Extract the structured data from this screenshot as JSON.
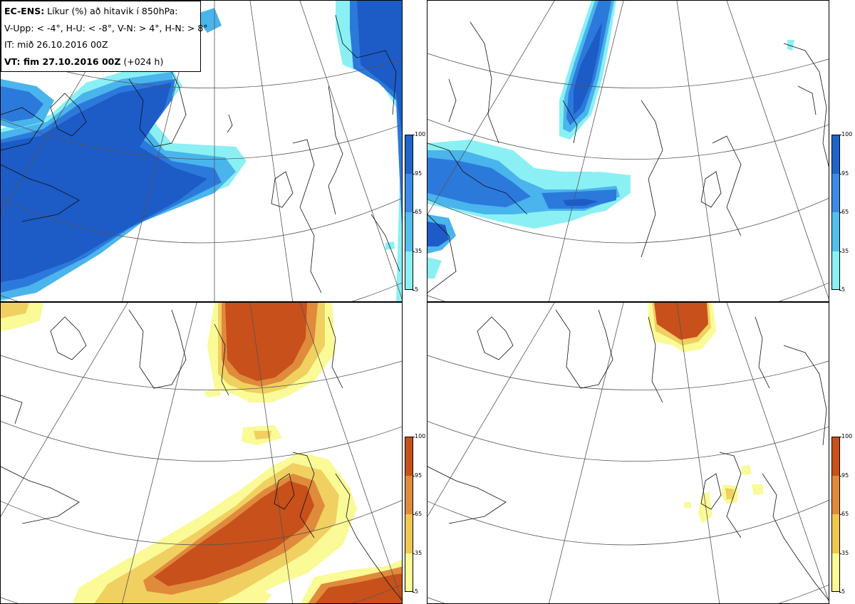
{
  "info": {
    "model": "EC-ENS:",
    "title_rest": " Líkur (%) að hitavik í 850hPa:",
    "thresholds": "V-Upp: < -4°, H-U: < -8°, V-N: > 4°, H-N: > 8°",
    "init": "IT: mið 26.10.2016 00Z",
    "valid_bold": "VT: fim 27.10.2016 00Z",
    "valid_lead": " (+024 h)"
  },
  "panels": [
    {
      "id": "V-Upp",
      "scheme": "cold",
      "threshold": "< -4°"
    },
    {
      "id": "H-U",
      "scheme": "cold",
      "threshold": "< -8°"
    },
    {
      "id": "V-N",
      "scheme": "warm",
      "threshold": "> 4°"
    },
    {
      "id": "H-N",
      "scheme": "warm",
      "threshold": "> 8°"
    }
  ],
  "colorbar": {
    "ticks": [
      "100",
      "95",
      "65",
      "35",
      "5"
    ],
    "cold": [
      "#1f64c8",
      "#3c8be6",
      "#52c0ea",
      "#8af0f4"
    ],
    "warm": [
      "#c8501a",
      "#e08a3c",
      "#f0c850",
      "#fafa96"
    ]
  },
  "colors": {
    "cold_levels": [
      "#8af0f4",
      "#4ab4ec",
      "#2c79dc",
      "#1d5bc6"
    ],
    "warm_levels": [
      "#fafa96",
      "#f0d060",
      "#e08a3c",
      "#c8501a"
    ]
  }
}
